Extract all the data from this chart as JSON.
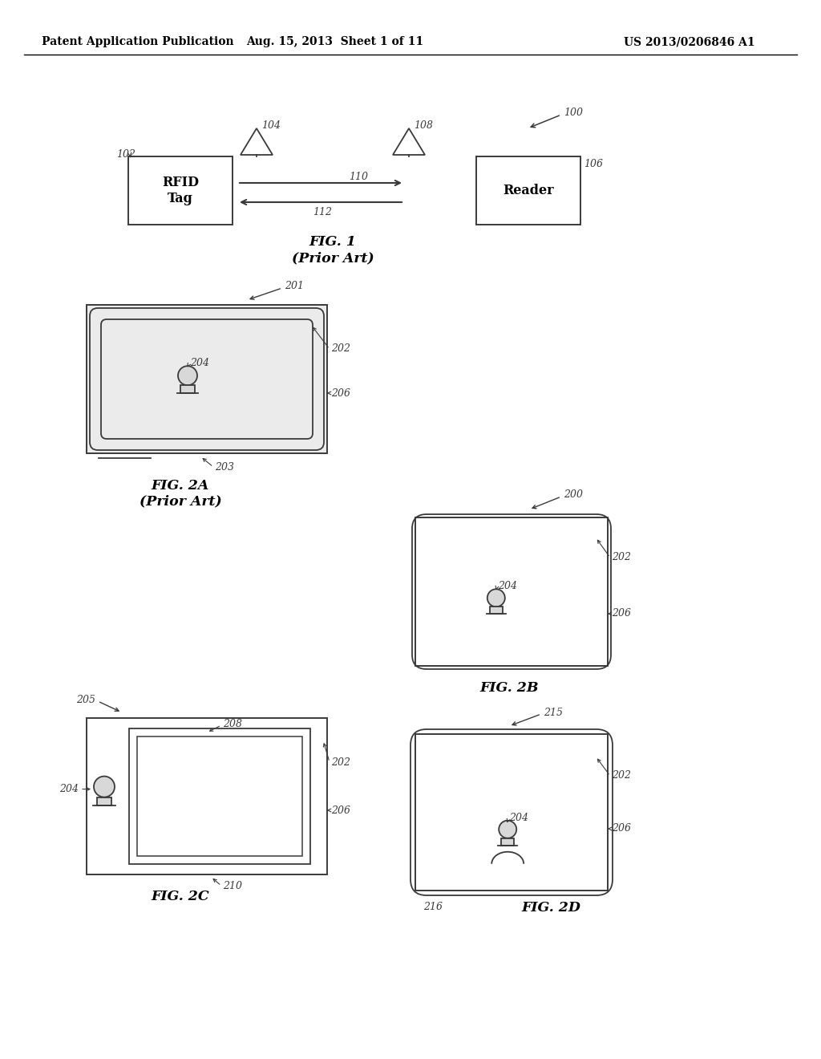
{
  "bg_color": "#ffffff",
  "line_color": "#3a3a3a",
  "header_left": "Patent Application Publication",
  "header_mid": "Aug. 15, 2013  Sheet 1 of 11",
  "header_right": "US 2013/0206846 A1",
  "fig1_caption": "FIG. 1",
  "fig1_subcaption": "(Prior Art)",
  "fig2a_caption": "FIG. 2A",
  "fig2a_subcaption": "(Prior Art)",
  "fig2b_caption": "FIG. 2B",
  "fig2c_caption": "FIG. 2C",
  "fig2d_caption": "FIG. 2D"
}
